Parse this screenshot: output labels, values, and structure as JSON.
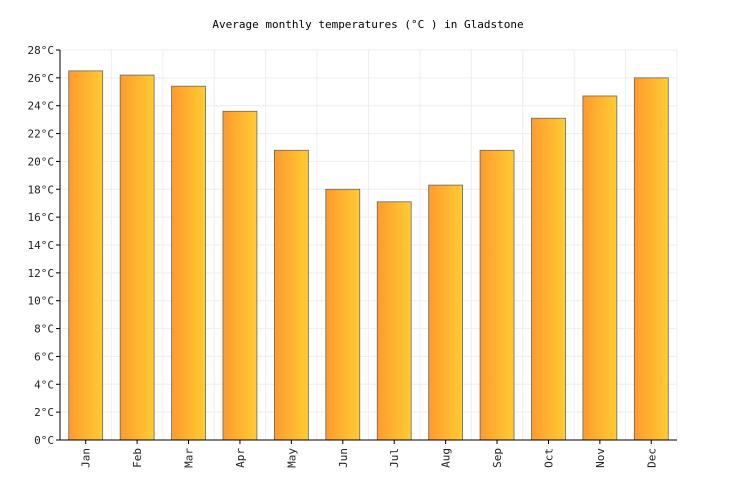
{
  "chart_data": {
    "type": "bar",
    "title": "Average monthly temperatures (°C ) in Gladstone",
    "categories": [
      "Jan",
      "Feb",
      "Mar",
      "Apr",
      "May",
      "Jun",
      "Jul",
      "Aug",
      "Sep",
      "Oct",
      "Nov",
      "Dec"
    ],
    "values": [
      26.5,
      26.2,
      25.4,
      23.6,
      20.8,
      18.0,
      17.1,
      18.3,
      20.8,
      23.1,
      24.7,
      26.0
    ],
    "ylim": [
      0,
      28
    ],
    "yticks": [
      "0°C",
      "2°C",
      "4°C",
      "6°C",
      "8°C",
      "10°C",
      "12°C",
      "14°C",
      "16°C",
      "18°C",
      "20°C",
      "22°C",
      "24°C",
      "26°C",
      "28°C"
    ],
    "grid": true,
    "colors": {
      "bar_left": "#ff9a2e",
      "bar_right": "#ffcc33",
      "bar_stroke": "#666666",
      "grid": "#eeeeee",
      "axis": "#000000"
    }
  }
}
